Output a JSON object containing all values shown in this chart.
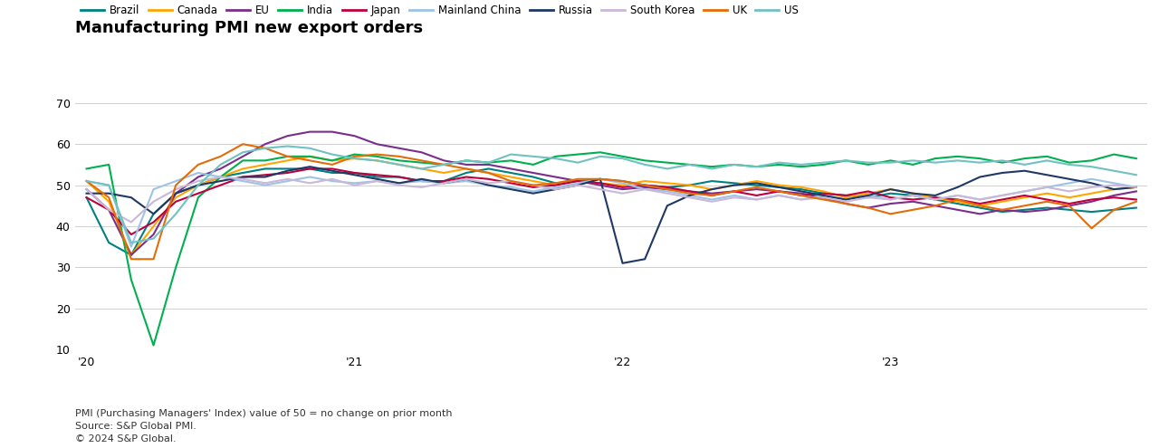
{
  "title": "Manufacturing PMI new export orders",
  "footnotes": [
    "PMI (Purchasing Managers' Index) value of 50 = no change on prior month",
    "Source: S&P Global PMI.",
    "© 2024 S&P Global."
  ],
  "ylim": [
    10,
    70
  ],
  "yticks": [
    10,
    20,
    30,
    40,
    50,
    60,
    70
  ],
  "series": {
    "Brazil": {
      "color": "#008080",
      "data": [
        47.0,
        36.0,
        33.0,
        43.0,
        48.0,
        50.0,
        52.0,
        53.0,
        54.0,
        54.0,
        54.0,
        53.0,
        53.0,
        52.0,
        52.0,
        51.0,
        51.0,
        53.0,
        54.0,
        53.0,
        52.0,
        50.5,
        51.0,
        51.5,
        51.0,
        50.0,
        49.5,
        50.0,
        51.0,
        50.5,
        50.0,
        49.5,
        49.0,
        48.0,
        47.5,
        47.0,
        48.0,
        47.5,
        46.5,
        45.5,
        44.5,
        43.5,
        44.0,
        44.5,
        44.0,
        43.5,
        44.0,
        44.5
      ]
    },
    "Canada": {
      "color": "#FFA500",
      "data": [
        51.0,
        46.0,
        33.0,
        40.0,
        47.0,
        50.0,
        52.0,
        54.0,
        55.0,
        56.0,
        57.0,
        56.0,
        56.5,
        56.0,
        55.0,
        54.0,
        53.0,
        54.0,
        53.0,
        52.0,
        51.0,
        50.0,
        51.0,
        50.5,
        50.0,
        51.0,
        50.5,
        50.0,
        49.0,
        50.0,
        51.0,
        50.0,
        49.5,
        48.5,
        47.0,
        48.0,
        49.0,
        48.0,
        47.0,
        46.0,
        45.0,
        46.0,
        47.0,
        48.0,
        47.0,
        48.0,
        49.0,
        49.5
      ]
    },
    "EU": {
      "color": "#7B2D8B",
      "data": [
        49.0,
        44.0,
        33.0,
        38.0,
        48.0,
        52.0,
        54.0,
        57.0,
        60.0,
        62.0,
        63.0,
        63.0,
        62.0,
        60.0,
        59.0,
        58.0,
        56.0,
        55.0,
        55.0,
        54.0,
        53.0,
        52.0,
        51.0,
        50.0,
        49.0,
        49.5,
        49.0,
        48.5,
        48.0,
        48.5,
        49.0,
        48.5,
        48.0,
        47.0,
        45.5,
        44.5,
        45.5,
        46.0,
        45.0,
        44.0,
        43.0,
        44.0,
        43.5,
        44.0,
        45.0,
        46.0,
        47.5,
        48.5
      ]
    },
    "India": {
      "color": "#00B050",
      "data": [
        54.0,
        55.0,
        27.0,
        11.0,
        30.0,
        47.0,
        52.0,
        56.0,
        56.0,
        57.0,
        57.0,
        56.0,
        57.5,
        57.0,
        56.0,
        55.5,
        55.0,
        56.0,
        55.5,
        56.0,
        55.0,
        57.0,
        57.5,
        58.0,
        57.0,
        56.0,
        55.5,
        55.0,
        54.5,
        55.0,
        54.5,
        55.0,
        54.5,
        55.0,
        56.0,
        55.0,
        56.0,
        55.0,
        56.5,
        57.0,
        56.5,
        55.5,
        56.5,
        57.0,
        55.5,
        56.0,
        57.5,
        56.5
      ]
    },
    "Japan": {
      "color": "#C0003C",
      "data": [
        47.0,
        44.0,
        38.0,
        41.0,
        46.0,
        48.0,
        50.0,
        52.0,
        52.5,
        53.0,
        54.0,
        54.0,
        53.0,
        52.5,
        52.0,
        51.0,
        51.0,
        52.0,
        51.5,
        50.5,
        49.5,
        50.0,
        51.0,
        50.5,
        49.5,
        50.0,
        49.5,
        48.5,
        47.5,
        48.5,
        47.5,
        48.5,
        47.5,
        48.0,
        47.5,
        48.5,
        47.0,
        46.5,
        47.0,
        46.5,
        45.5,
        46.5,
        47.5,
        46.5,
        45.5,
        46.5,
        47.0,
        46.5
      ]
    },
    "Mainland China": {
      "color": "#9DC3E6",
      "data": [
        51.0,
        50.0,
        35.0,
        49.0,
        51.0,
        53.0,
        52.0,
        51.0,
        50.0,
        51.0,
        52.0,
        51.0,
        50.5,
        51.0,
        50.5,
        51.0,
        50.5,
        51.0,
        50.0,
        49.5,
        48.5,
        49.5,
        50.5,
        51.5,
        50.5,
        49.0,
        48.5,
        47.5,
        46.5,
        47.5,
        46.5,
        47.5,
        46.5,
        47.5,
        46.5,
        47.5,
        46.5,
        47.5,
        46.5,
        47.5,
        46.5,
        47.5,
        48.5,
        49.5,
        50.5,
        51.5,
        50.5,
        49.5
      ]
    },
    "Russia": {
      "color": "#1F3864",
      "data": [
        48.0,
        48.0,
        47.0,
        43.0,
        48.0,
        50.0,
        51.0,
        52.0,
        52.0,
        53.5,
        54.5,
        53.5,
        52.5,
        51.5,
        50.5,
        51.5,
        50.5,
        51.5,
        50.0,
        49.0,
        48.0,
        49.0,
        50.0,
        51.5,
        31.0,
        32.0,
        45.0,
        47.5,
        49.0,
        50.0,
        50.5,
        49.5,
        48.5,
        47.5,
        46.5,
        47.5,
        49.0,
        48.0,
        47.5,
        49.5,
        52.0,
        53.0,
        53.5,
        52.5,
        51.5,
        50.5,
        49.0,
        49.5
      ]
    },
    "South Korea": {
      "color": "#C9B8D8",
      "data": [
        49.0,
        44.0,
        41.0,
        46.0,
        49.0,
        51.0,
        52.0,
        51.5,
        50.5,
        51.5,
        50.5,
        51.5,
        50.0,
        51.0,
        50.0,
        49.5,
        50.5,
        51.5,
        50.5,
        51.0,
        50.0,
        49.0,
        50.0,
        49.0,
        48.0,
        49.0,
        48.0,
        47.0,
        46.0,
        47.0,
        46.5,
        47.5,
        46.5,
        47.0,
        46.0,
        47.0,
        46.5,
        47.5,
        46.5,
        47.5,
        46.5,
        47.5,
        48.5,
        49.5,
        48.5,
        49.5,
        50.0,
        49.5
      ]
    },
    "UK": {
      "color": "#E36C09",
      "data": [
        51.0,
        47.0,
        32.0,
        32.0,
        50.0,
        55.0,
        57.0,
        60.0,
        59.0,
        57.0,
        56.0,
        55.0,
        57.0,
        57.5,
        57.0,
        56.0,
        55.0,
        54.0,
        53.0,
        51.0,
        50.0,
        50.5,
        51.5,
        51.5,
        51.0,
        50.0,
        49.0,
        48.0,
        47.5,
        48.5,
        49.5,
        48.5,
        47.5,
        46.5,
        45.5,
        44.5,
        43.0,
        44.0,
        45.0,
        46.5,
        45.0,
        44.0,
        45.0,
        46.0,
        45.0,
        39.5,
        44.0,
        46.0
      ]
    },
    "US": {
      "color": "#70C1C2",
      "data": [
        51.0,
        50.0,
        36.0,
        37.0,
        43.0,
        50.0,
        55.0,
        58.0,
        59.0,
        59.5,
        59.0,
        57.5,
        56.5,
        56.0,
        55.0,
        54.0,
        55.0,
        56.0,
        55.5,
        57.5,
        57.0,
        56.5,
        55.5,
        57.0,
        56.5,
        55.0,
        54.0,
        55.0,
        54.0,
        55.0,
        54.5,
        55.5,
        55.0,
        55.5,
        56.0,
        55.5,
        55.5,
        56.0,
        55.5,
        56.0,
        55.5,
        56.0,
        55.0,
        56.0,
        55.0,
        54.5,
        53.5,
        52.5
      ]
    }
  },
  "n_points": 48,
  "xtick_positions": [
    0,
    12,
    24,
    36
  ],
  "xtick_labels": [
    "'20",
    "'21",
    "'22",
    "'23"
  ],
  "background_color": "#FFFFFF",
  "grid_color": "#D0D0D0",
  "title_fontsize": 13,
  "legend_fontsize": 8.5,
  "tick_fontsize": 9,
  "footnote_fontsize": 8
}
